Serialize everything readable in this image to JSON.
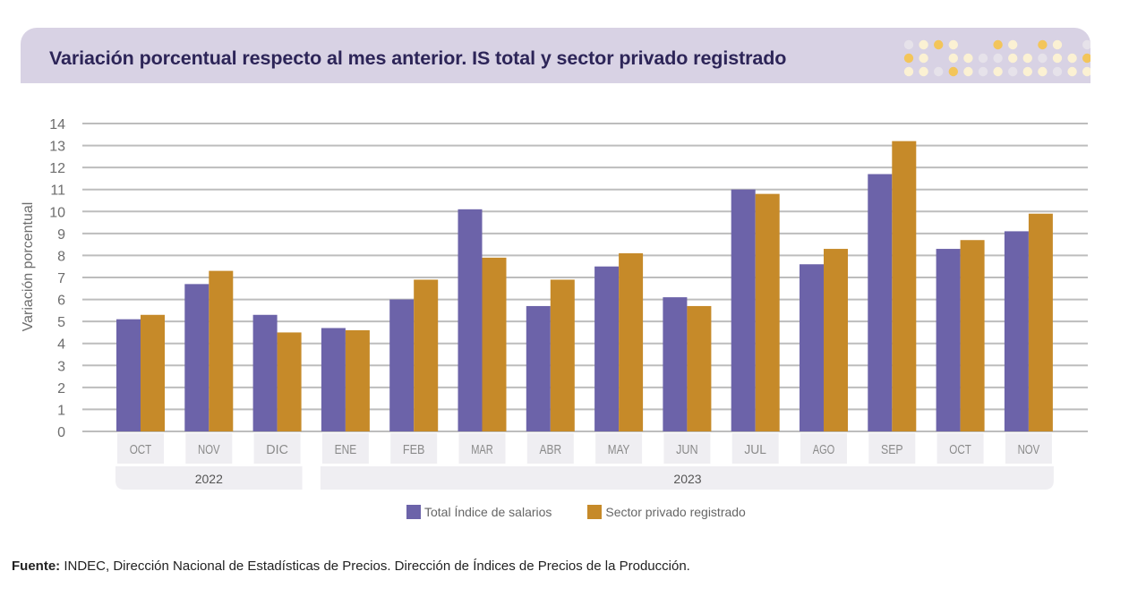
{
  "header": {
    "title": "Variación porcentual respecto al mes anterior. IS total y sector privado registrado",
    "background_color": "#d8d2e4",
    "dots": {
      "colors": {
        "g": "#e6e2ea",
        "c": "#fbf1d3",
        "o": "#f3c55a"
      },
      "rows": [
        [
          "g",
          "c",
          "o",
          "c",
          "",
          "",
          "o",
          "c",
          "",
          "o",
          "c",
          "",
          "g"
        ],
        [
          "o",
          "c",
          "",
          "c",
          "c",
          "g",
          "g",
          "c",
          "c",
          "g",
          "c",
          "c",
          "o"
        ],
        [
          "c",
          "c",
          "g",
          "o",
          "c",
          "g",
          "c",
          "g",
          "c",
          "c",
          "g",
          "c",
          "c"
        ]
      ]
    }
  },
  "chart_data": {
    "type": "bar",
    "title": "Variación porcentual respecto al mes anterior. IS total y sector privado registrado",
    "xlabel": "",
    "ylabel": "Variación porcentual",
    "ylim": [
      0,
      14
    ],
    "yticks": [
      "0",
      "1",
      "2",
      "3",
      "4",
      "5",
      "6",
      "7",
      "8",
      "9",
      "10",
      "11",
      "12",
      "13",
      "14"
    ],
    "grid": true,
    "categories": [
      "OCT",
      "NOV",
      "DIC",
      "ENE",
      "FEB",
      "MAR",
      "ABR",
      "MAY",
      "JUN",
      "JUL",
      "AGO",
      "SEP",
      "OCT",
      "NOV"
    ],
    "year_groups": [
      {
        "label": "2022",
        "count": 3
      },
      {
        "label": "2023",
        "count": 11
      }
    ],
    "series": [
      {
        "name": "Total Índice de salarios",
        "color": "#6c63a9",
        "values": [
          5.1,
          6.7,
          5.3,
          4.7,
          6.0,
          10.1,
          5.7,
          7.5,
          6.1,
          11.0,
          7.6,
          11.7,
          8.3,
          9.1
        ]
      },
      {
        "name": "Sector privado registrado",
        "color": "#c68a29",
        "values": [
          5.3,
          7.3,
          4.5,
          4.6,
          6.9,
          7.9,
          6.9,
          8.1,
          5.7,
          10.8,
          8.3,
          13.2,
          8.7,
          9.9
        ]
      }
    ],
    "legend_position": "bottom-center"
  },
  "legend": {
    "items": [
      {
        "label": "Total Índice de salarios",
        "color": "#6c63a9"
      },
      {
        "label": "Sector privado registrado",
        "color": "#c68a29"
      }
    ]
  },
  "footer": {
    "source_label": "Fuente:",
    "source_text": " INDEC, Dirección Nacional de Estadísticas de Precios. Dirección de Índices de Precios de la Producción."
  }
}
